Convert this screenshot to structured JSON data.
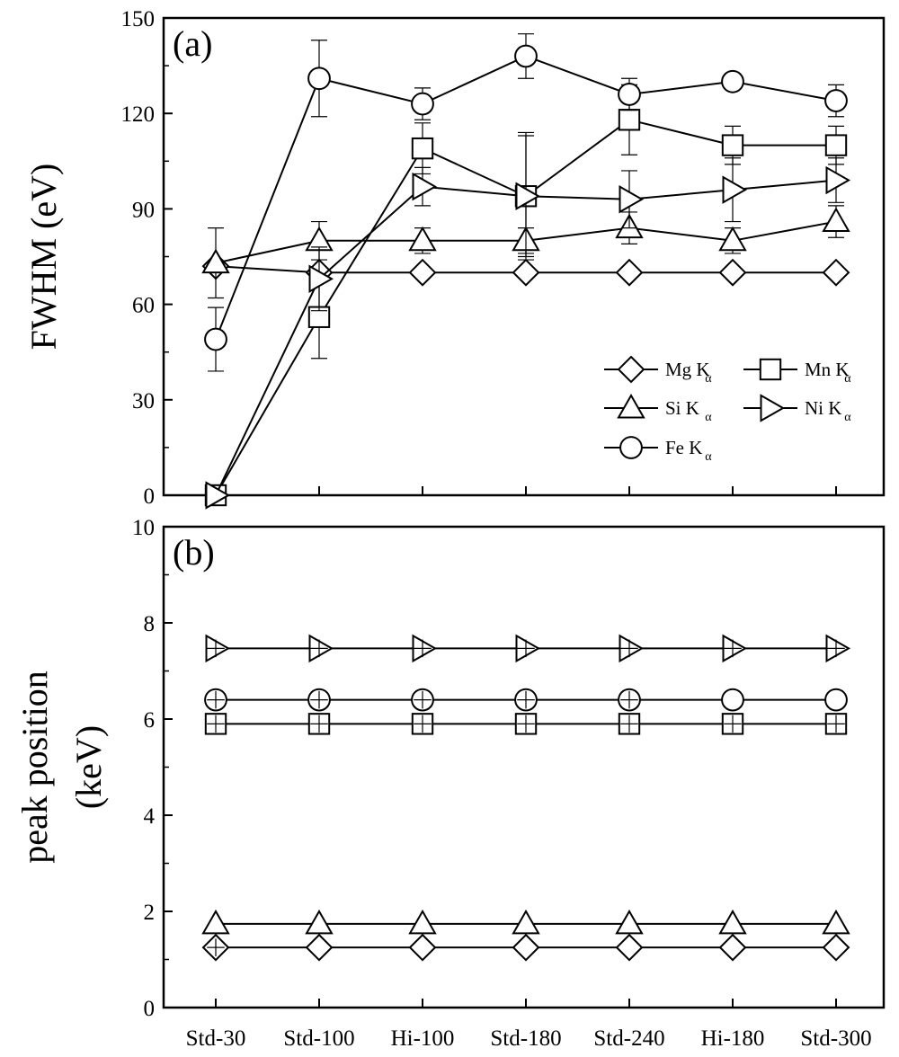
{
  "chart_data": [
    {
      "type": "line",
      "panel_label": "(a)",
      "ylabel": "FWHM (eV)",
      "ylim": [
        0,
        150
      ],
      "yticks": [
        0,
        30,
        60,
        90,
        120,
        150
      ],
      "categories": [
        "Std-30",
        "Std-100",
        "Hi-100",
        "Std-180",
        "Std-240",
        "Hi-180",
        "Std-300"
      ],
      "grid": false,
      "legend_placement": "lower-right",
      "series": [
        {
          "name": "Mg K",
          "subscript": "α",
          "marker": "diamond",
          "values": [
            72,
            70,
            70,
            70,
            70,
            70,
            70
          ],
          "error": [
            0,
            0,
            0,
            0,
            0,
            0,
            0
          ]
        },
        {
          "name": "Mn K",
          "subscript": "α",
          "marker": "square",
          "values": [
            0,
            56,
            109,
            94,
            118,
            110,
            110
          ],
          "error": [
            0,
            13,
            8,
            19,
            11,
            6,
            6
          ]
        },
        {
          "name": "Si K",
          "subscript": "α",
          "marker": "triangle-up",
          "values": [
            73,
            80,
            80,
            80,
            84,
            80,
            86
          ],
          "error": [
            11,
            6,
            4,
            4,
            5,
            4,
            5
          ]
        },
        {
          "name": "Ni K",
          "subscript": "α",
          "marker": "triangle-right",
          "values": [
            0,
            68,
            97,
            94,
            93,
            96,
            99
          ],
          "error": [
            0,
            10,
            6,
            20,
            9,
            10,
            7
          ]
        },
        {
          "name": "Fe K",
          "subscript": "α",
          "marker": "circle",
          "values": [
            49,
            131,
            123,
            138,
            126,
            130,
            124
          ],
          "error": [
            10,
            12,
            5,
            7,
            5,
            0,
            5
          ]
        }
      ]
    },
    {
      "type": "line",
      "panel_label": "(b)",
      "ylabel_line1": "peak position",
      "ylabel_line2": "(keV)",
      "ylim": [
        0,
        10
      ],
      "yticks": [
        0,
        2,
        4,
        6,
        8,
        10
      ],
      "categories": [
        "Std-30",
        "Std-100",
        "Hi-100",
        "Std-180",
        "Std-240",
        "Hi-180",
        "Std-300"
      ],
      "grid": false,
      "series": [
        {
          "name": "Mg K",
          "subscript": "α",
          "marker": "diamond",
          "values": [
            1.25,
            1.25,
            1.25,
            1.25,
            1.25,
            1.25,
            1.25
          ]
        },
        {
          "name": "Si K",
          "subscript": "α",
          "marker": "triangle-up",
          "values": [
            1.74,
            1.74,
            1.74,
            1.74,
            1.74,
            1.74,
            1.74
          ]
        },
        {
          "name": "Mn K",
          "subscript": "α",
          "marker": "square",
          "values": [
            5.9,
            5.9,
            5.9,
            5.9,
            5.9,
            5.9,
            5.9
          ]
        },
        {
          "name": "Fe K",
          "subscript": "α",
          "marker": "circle",
          "values": [
            6.4,
            6.4,
            6.4,
            6.4,
            6.4,
            6.4,
            6.4
          ]
        },
        {
          "name": "Ni K",
          "subscript": "α",
          "marker": "triangle-right",
          "values": [
            7.47,
            7.47,
            7.47,
            7.47,
            7.47,
            7.47,
            7.47
          ]
        }
      ]
    }
  ]
}
